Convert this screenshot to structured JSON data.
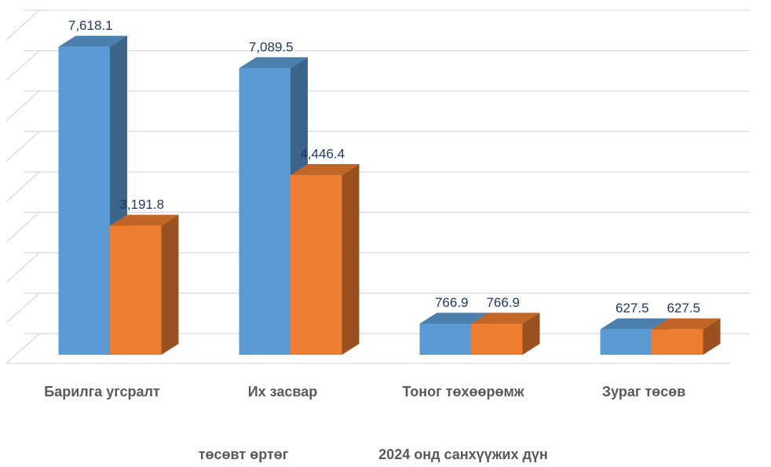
{
  "chart_data": {
    "type": "bar3d",
    "categories": [
      "Барилга угсралт",
      "Их засвар",
      "Тоног төхөөрөмж",
      "Зураг төсөв"
    ],
    "series": [
      {
        "name": "төсөвт өртөг",
        "color": "#5b9bd5",
        "values": [
          7618.1,
          7089.5,
          766.9,
          627.5
        ],
        "value_labels": [
          "7,618.1",
          "7,089.5",
          "766.9",
          "627.5"
        ]
      },
      {
        "name": "2024 онд санхүүжих дүн",
        "color": "#ed7d31",
        "values": [
          3191.8,
          4446.4,
          766.9,
          627.5
        ],
        "value_labels": [
          "3,191.8",
          "4,446.4",
          "766.9",
          "627.5"
        ]
      }
    ],
    "ylim": [
      0,
      8000
    ],
    "yticks": [
      0,
      1000,
      2000,
      3000,
      4000,
      5000,
      6000,
      7000,
      8000
    ],
    "grid": true
  }
}
